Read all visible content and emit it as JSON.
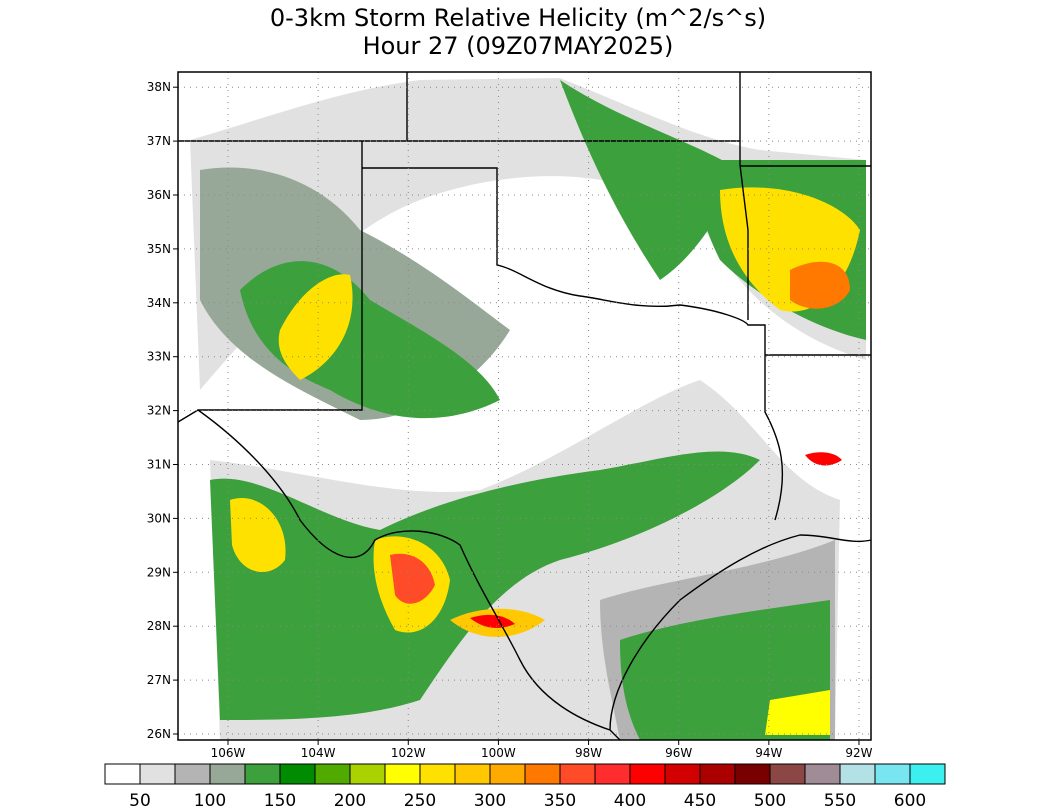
{
  "title": [
    "0-3km Storm Relative Helicity (m^2/s^s)",
    "Hour 27 (09Z07MAY2025)"
  ],
  "lat_labels": [
    "26N",
    "27N",
    "28N",
    "29N",
    "30N",
    "31N",
    "32N",
    "33N",
    "34N",
    "35N",
    "36N",
    "37N",
    "38N"
  ],
  "lon_labels": [
    "106W",
    "104W",
    "102W",
    "100W",
    "98W",
    "96W",
    "94W",
    "92W"
  ],
  "colorbar": {
    "colors": [
      "#ffffff",
      "#e1e1e1",
      "#b4b4b4",
      "#98a898",
      "#3ca03c",
      "#008c00",
      "#50aa00",
      "#aad200",
      "#ffff00",
      "#ffe100",
      "#ffc800",
      "#ffaa00",
      "#ff7800",
      "#ff4b28",
      "#ff2d2d",
      "#ff0000",
      "#d20000",
      "#aa0000",
      "#780000",
      "#8c4646",
      "#a08c96",
      "#b4e1e6",
      "#78e6f0",
      "#3cf0f0"
    ],
    "labels": [
      50,
      100,
      150,
      200,
      250,
      300,
      350,
      400,
      450,
      500,
      550,
      600
    ]
  }
}
